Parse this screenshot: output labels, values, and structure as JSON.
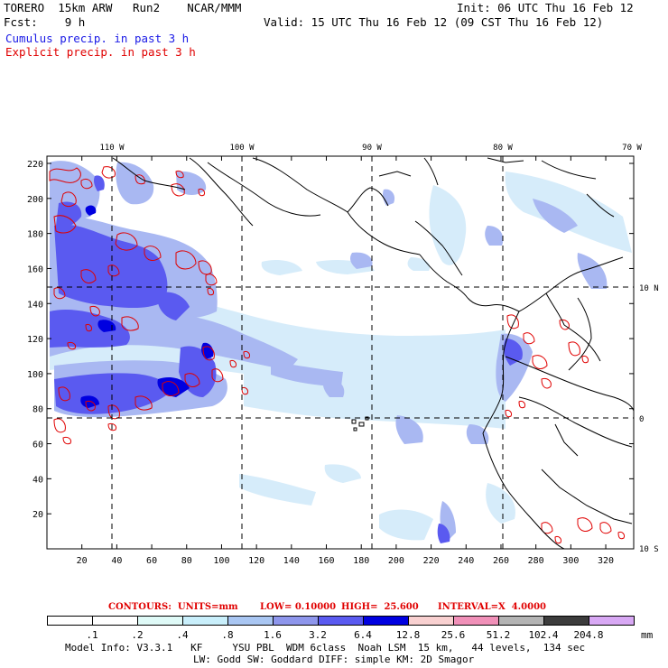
{
  "header": {
    "model": "TORERO  15km ARW   Run2    NCAR/MMM",
    "init": "Init: 06 UTC Thu 16 Feb 12",
    "fcst": "Fcst:    9 h",
    "valid": "Valid: 15 UTC Thu 16 Feb 12 (09 CST Thu 16 Feb 12)",
    "legend_cumulus": "Cumulus precip. in past 3 h",
    "legend_explicit": "Explicit precip. in past 3 h"
  },
  "map": {
    "lon_labels": [
      "110 W",
      "100 W",
      "90 W",
      "80 W",
      "70 W"
    ],
    "lat_labels": [
      "10 N",
      "0",
      "10 S"
    ],
    "y_ticks": [
      "220",
      "200",
      "180",
      "160",
      "140",
      "120",
      "100",
      "80",
      "60",
      "40",
      "20"
    ],
    "x_ticks": [
      "20",
      "40",
      "60",
      "80",
      "100",
      "120",
      "140",
      "160",
      "180",
      "200",
      "220",
      "240",
      "260",
      "280",
      "300",
      "320"
    ],
    "colors": {
      "cumulus_light": "#d6ecfa",
      "cumulus_mid": "#a9b8f2",
      "cumulus_dark": "#5a5af0",
      "cumulus_max": "#0000e0",
      "explicit": "#e00000"
    }
  },
  "contours": {
    "units": "CONTOURS:  UNITS=mm",
    "low": "LOW= 0.10000",
    "high": "HIGH=  25.600",
    "interval": "INTERVAL=X  4.0000"
  },
  "colorbar": {
    "labels": [
      ".1",
      ".2",
      ".4",
      ".8",
      "1.6",
      "3.2",
      "6.4",
      "12.8",
      "25.6",
      "51.2",
      "102.4",
      "204.8"
    ],
    "unit": "mm",
    "colors": [
      "#ffffff",
      "#ffffff",
      "#dffaf7",
      "#c9effb",
      "#a9c6f2",
      "#8e96ec",
      "#5a5af0",
      "#0000e0",
      "#f8d0d0",
      "#f090b8",
      "#b4b4b4",
      "#3c3c3c",
      "#d8a8f4"
    ]
  },
  "footer": {
    "line1": "Model Info: V3.3.1   KF     YSU PBL  WDM 6class  Noah LSM  15 km,   44 levels,  134 sec",
    "line2": "LW: Godd SW: Goddard DIFF: simple KM: 2D Smagor"
  }
}
